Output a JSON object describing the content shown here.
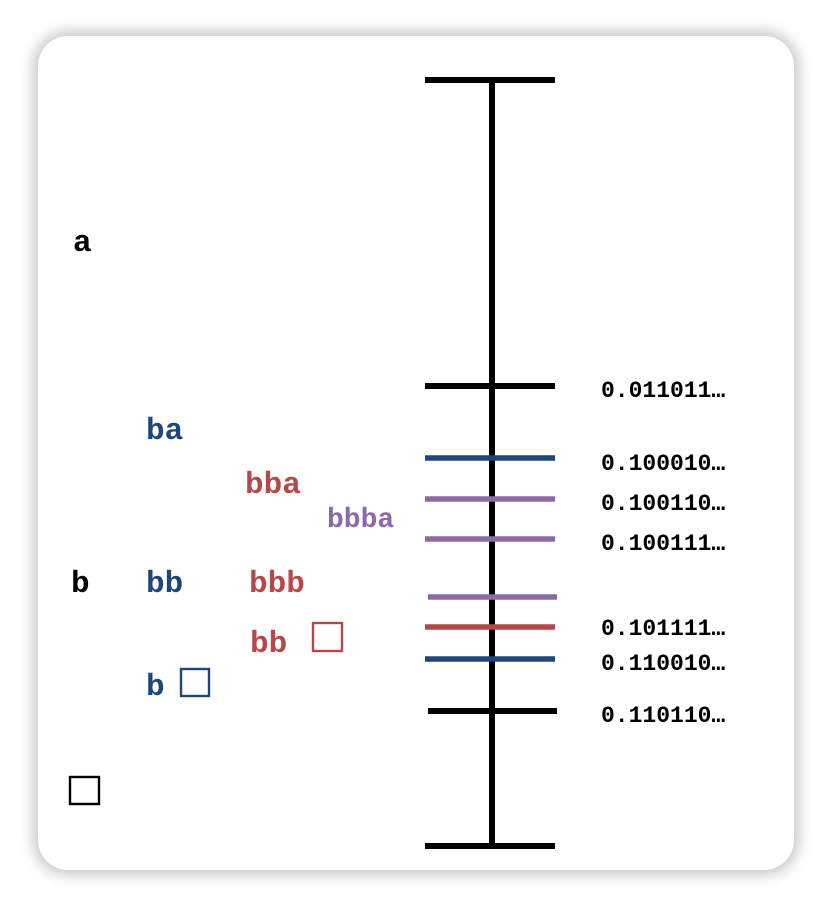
{
  "colors": {
    "level1": "#000000",
    "level2": "#1f4678",
    "level3": "#b84848",
    "level4": "#8b6aa6"
  },
  "symbols": [
    {
      "key": "a",
      "text": "a",
      "level": 1
    },
    {
      "key": "b",
      "text": "b",
      "level": 1
    },
    {
      "key": "end",
      "text": "",
      "level": 1,
      "box": true
    },
    {
      "key": "ba",
      "text": "ba",
      "level": 2
    },
    {
      "key": "bb",
      "text": "bb",
      "level": 2
    },
    {
      "key": "b_end",
      "text": "b",
      "level": 2,
      "box": true
    },
    {
      "key": "bba",
      "text": "bba",
      "level": 3
    },
    {
      "key": "bbb",
      "text": "bbb",
      "level": 3
    },
    {
      "key": "bb_end",
      "text": "bb",
      "level": 3,
      "box": true
    },
    {
      "key": "bbba",
      "text": "bbba",
      "level": 4
    }
  ],
  "boundaries": [
    {
      "key": "t0",
      "level": 1,
      "value": ""
    },
    {
      "key": "t1",
      "level": 1,
      "value": "0.011011…"
    },
    {
      "key": "t2",
      "level": 2,
      "value": "0.100010…"
    },
    {
      "key": "t3",
      "level": 4,
      "value": "0.100110…"
    },
    {
      "key": "t4",
      "level": 4,
      "value": "0.100111…"
    },
    {
      "key": "t5",
      "level": 4,
      "value": ""
    },
    {
      "key": "t6",
      "level": 3,
      "value": "0.101111…"
    },
    {
      "key": "t7",
      "level": 2,
      "value": "0.110010…"
    },
    {
      "key": "t8",
      "level": 1,
      "value": "0.110110…"
    },
    {
      "key": "t9",
      "level": 1,
      "value": ""
    }
  ]
}
